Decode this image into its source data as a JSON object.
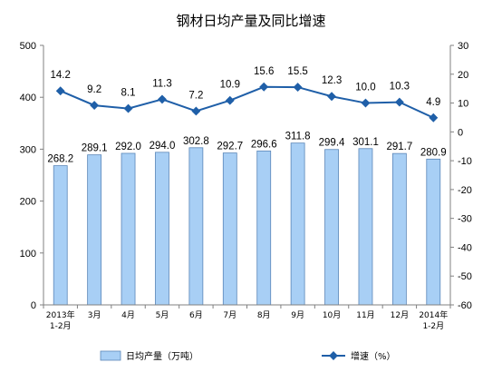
{
  "chart_data": {
    "type": "bar+line",
    "title": "钢材日均产量及同比增速",
    "categories": [
      [
        "2013年",
        "1-2月"
      ],
      [
        "3月"
      ],
      [
        "4月"
      ],
      [
        "5月"
      ],
      [
        "6月"
      ],
      [
        "7月"
      ],
      [
        "8月"
      ],
      [
        "9月"
      ],
      [
        "10月"
      ],
      [
        "11月"
      ],
      [
        "12月"
      ],
      [
        "2014年",
        "1-2月"
      ]
    ],
    "series": [
      {
        "name": "日均产量（万吨）",
        "kind": "bar",
        "axis": "left",
        "color": "#a8cff5",
        "values": [
          268.2,
          289.1,
          292.0,
          294.0,
          302.8,
          292.7,
          296.6,
          311.8,
          299.4,
          301.1,
          291.7,
          280.9
        ],
        "labels": [
          "268.2",
          "289.1",
          "292.0",
          "294.0",
          "302.8",
          "292.7",
          "296.6",
          "311.8",
          "299.4",
          "301.1",
          "291.7",
          "280.9"
        ]
      },
      {
        "name": "增速（%）",
        "kind": "line",
        "axis": "right",
        "color": "#1f5fa8",
        "values": [
          14.2,
          9.2,
          8.1,
          11.3,
          7.2,
          10.9,
          15.6,
          15.5,
          12.3,
          10.0,
          10.3,
          4.9
        ],
        "labels": [
          "14.2",
          "9.2",
          "8.1",
          "11.3",
          "7.2",
          "10.9",
          "15.6",
          "15.5",
          "12.3",
          "10.0",
          "10.3",
          "4.9"
        ]
      }
    ],
    "left_axis": {
      "ylim": [
        0,
        500
      ],
      "ticks": [
        0,
        100,
        200,
        300,
        400,
        500
      ]
    },
    "right_axis": {
      "ylim": [
        -60,
        30
      ],
      "ticks": [
        30,
        20,
        10,
        0,
        -10,
        -20,
        -30,
        -40,
        -50,
        -60
      ]
    },
    "grid": false,
    "legend_position": "bottom"
  }
}
